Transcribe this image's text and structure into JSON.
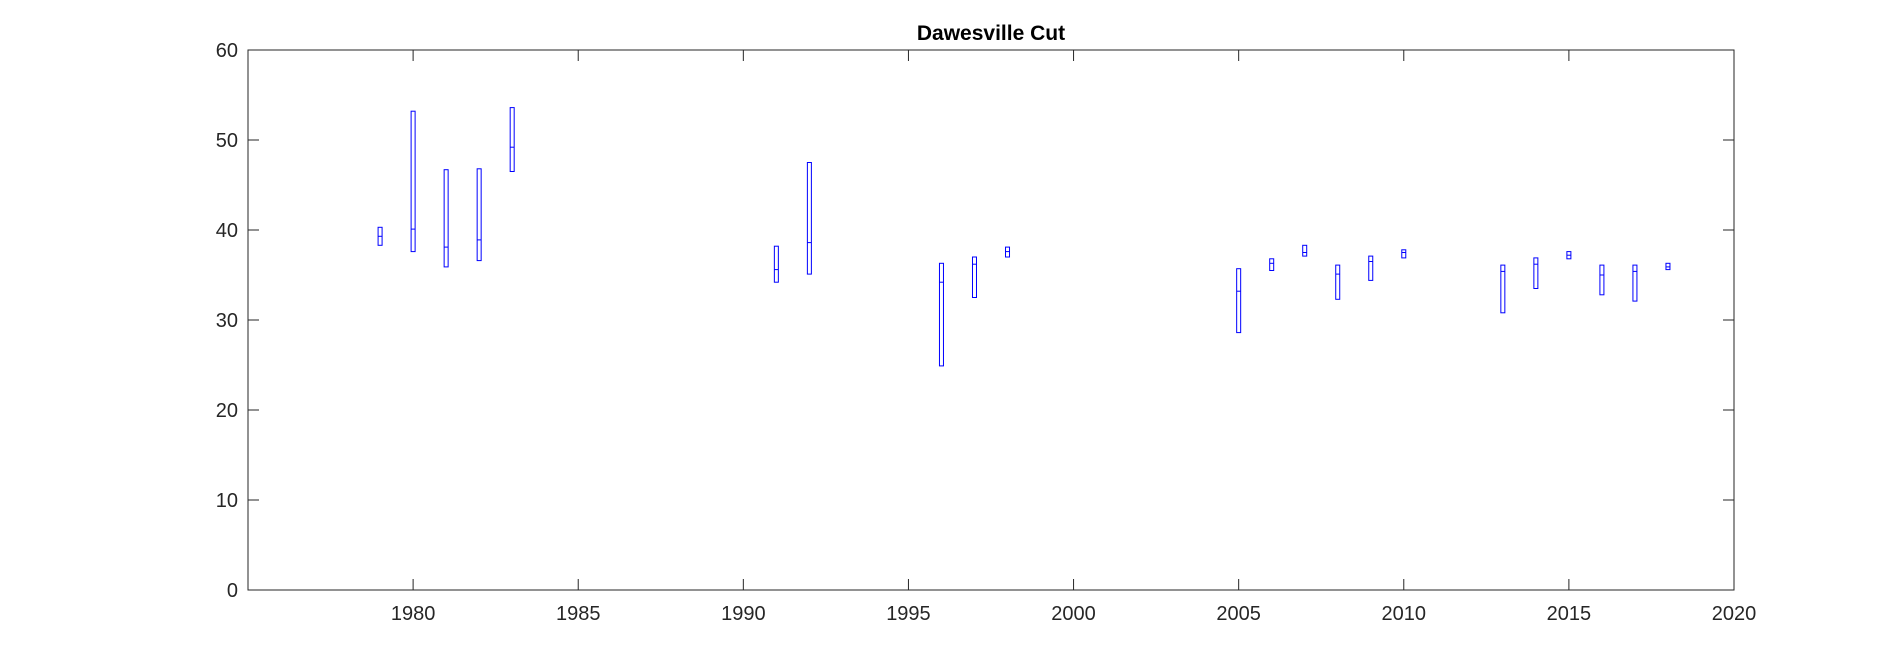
{
  "chart_data": {
    "type": "boxplot",
    "title": "Dawesville Cut",
    "xlabel": "",
    "ylabel": "",
    "xlim": [
      1975,
      2020
    ],
    "ylim": [
      0,
      60
    ],
    "x_ticks": [
      1980,
      1985,
      1990,
      1995,
      2000,
      2005,
      2010,
      2015,
      2020
    ],
    "y_ticks": [
      0,
      10,
      20,
      30,
      40,
      50,
      60
    ],
    "grid": false,
    "box_color": "#0000ff",
    "axis_color": "#262626",
    "boxes": [
      {
        "x": 1979,
        "low": 38.3,
        "median": 39.3,
        "high": 40.3
      },
      {
        "x": 1980,
        "low": 37.6,
        "median": 40.1,
        "high": 53.2
      },
      {
        "x": 1981,
        "low": 35.9,
        "median": 38.1,
        "high": 46.7
      },
      {
        "x": 1982,
        "low": 36.6,
        "median": 38.9,
        "high": 46.8
      },
      {
        "x": 1983,
        "low": 46.5,
        "median": 49.2,
        "high": 53.6
      },
      {
        "x": 1991,
        "low": 34.2,
        "median": 35.6,
        "high": 38.2
      },
      {
        "x": 1992,
        "low": 35.1,
        "median": 38.6,
        "high": 47.5
      },
      {
        "x": 1996,
        "low": 24.9,
        "median": 34.2,
        "high": 36.3
      },
      {
        "x": 1997,
        "low": 32.5,
        "median": 36.2,
        "high": 37.0
      },
      {
        "x": 1998,
        "low": 37.0,
        "median": 37.6,
        "high": 38.1
      },
      {
        "x": 2005,
        "low": 28.6,
        "median": 33.2,
        "high": 35.7
      },
      {
        "x": 2006,
        "low": 35.5,
        "median": 36.3,
        "high": 36.8
      },
      {
        "x": 2007,
        "low": 37.1,
        "median": 37.5,
        "high": 38.3
      },
      {
        "x": 2008,
        "low": 32.3,
        "median": 35.1,
        "high": 36.1
      },
      {
        "x": 2009,
        "low": 34.4,
        "median": 36.5,
        "high": 37.1
      },
      {
        "x": 2010,
        "low": 36.9,
        "median": 37.5,
        "high": 37.8
      },
      {
        "x": 2013,
        "low": 30.8,
        "median": 35.4,
        "high": 36.1
      },
      {
        "x": 2014,
        "low": 33.5,
        "median": 36.2,
        "high": 36.9
      },
      {
        "x": 2015,
        "low": 36.8,
        "median": 37.2,
        "high": 37.6
      },
      {
        "x": 2016,
        "low": 32.8,
        "median": 35.0,
        "high": 36.1
      },
      {
        "x": 2017,
        "low": 32.1,
        "median": 35.4,
        "high": 36.1
      },
      {
        "x": 2018,
        "low": 35.6,
        "median": 35.9,
        "high": 36.3
      }
    ]
  }
}
